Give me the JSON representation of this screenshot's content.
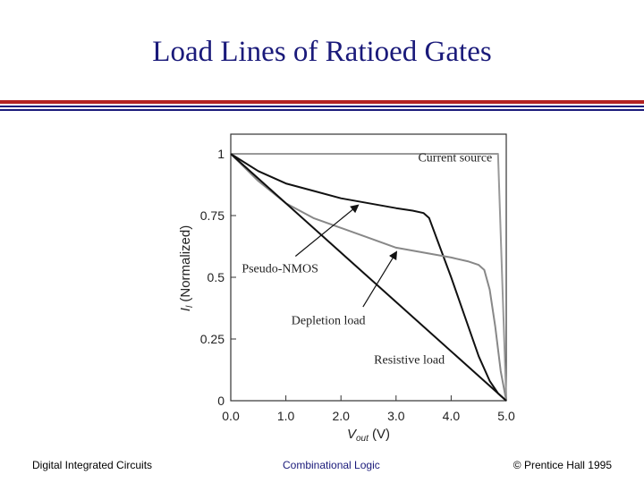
{
  "slide": {
    "title": "Load Lines of Ratioed Gates",
    "footer_left": "Digital Integrated Circuits",
    "footer_center": "Combinational Logic",
    "footer_right": "© Prentice Hall 1995"
  },
  "chart_data": {
    "type": "line",
    "xlabel": "V_out (V)",
    "ylabel": "I_l (Normalized)",
    "xlim": [
      0,
      5
    ],
    "ylim": [
      0,
      1
    ],
    "x_ticks": [
      0,
      1,
      2,
      3,
      4,
      5
    ],
    "x_tick_labels": [
      "0.0",
      "1.0",
      "2.0",
      "3.0",
      "4.0",
      "5.0"
    ],
    "y_ticks": [
      0,
      0.25,
      0.5,
      0.75,
      1
    ],
    "y_tick_labels": [
      "0",
      "0.25",
      "0.5",
      "0.75",
      "1"
    ],
    "grid": false,
    "series": [
      {
        "name": "Current source",
        "color": "#999999",
        "points": [
          [
            0,
            1
          ],
          [
            4.85,
            1
          ],
          [
            5,
            0
          ]
        ]
      },
      {
        "name": "Pseudo-NMOS",
        "color": "#111111",
        "points": [
          [
            0,
            1
          ],
          [
            0.5,
            0.93
          ],
          [
            1,
            0.88
          ],
          [
            1.5,
            0.85
          ],
          [
            2,
            0.82
          ],
          [
            2.5,
            0.8
          ],
          [
            3,
            0.78
          ],
          [
            3.3,
            0.77
          ],
          [
            3.5,
            0.76
          ],
          [
            3.6,
            0.74
          ],
          [
            3.75,
            0.65
          ],
          [
            4,
            0.5
          ],
          [
            4.25,
            0.34
          ],
          [
            4.5,
            0.18
          ],
          [
            4.7,
            0.08
          ],
          [
            4.85,
            0.03
          ],
          [
            5,
            0
          ]
        ]
      },
      {
        "name": "Depletion load",
        "color": "#888888",
        "points": [
          [
            0,
            1
          ],
          [
            0.5,
            0.89
          ],
          [
            1,
            0.8
          ],
          [
            1.5,
            0.74
          ],
          [
            2,
            0.7
          ],
          [
            2.5,
            0.66
          ],
          [
            3,
            0.62
          ],
          [
            3.5,
            0.6
          ],
          [
            4,
            0.58
          ],
          [
            4.3,
            0.565
          ],
          [
            4.5,
            0.55
          ],
          [
            4.6,
            0.53
          ],
          [
            4.7,
            0.45
          ],
          [
            4.8,
            0.3
          ],
          [
            4.9,
            0.12
          ],
          [
            5,
            0
          ]
        ]
      },
      {
        "name": "Resistive load",
        "color": "#111111",
        "points": [
          [
            0,
            1
          ],
          [
            5,
            0
          ]
        ]
      }
    ],
    "annotations": [
      {
        "text": "Current source",
        "x": 3.4,
        "y": 0.97
      },
      {
        "text": "Pseudo-NMOS",
        "x": 0.2,
        "y": 0.52,
        "arrow_to": [
          2.3,
          0.79
        ]
      },
      {
        "text": "Depletion load",
        "x": 1.1,
        "y": 0.31,
        "arrow_to": [
          3.0,
          0.6
        ],
        "arrow_from": [
          2.4,
          0.38
        ]
      },
      {
        "text": "Resistive load",
        "x": 2.6,
        "y": 0.15
      }
    ]
  }
}
